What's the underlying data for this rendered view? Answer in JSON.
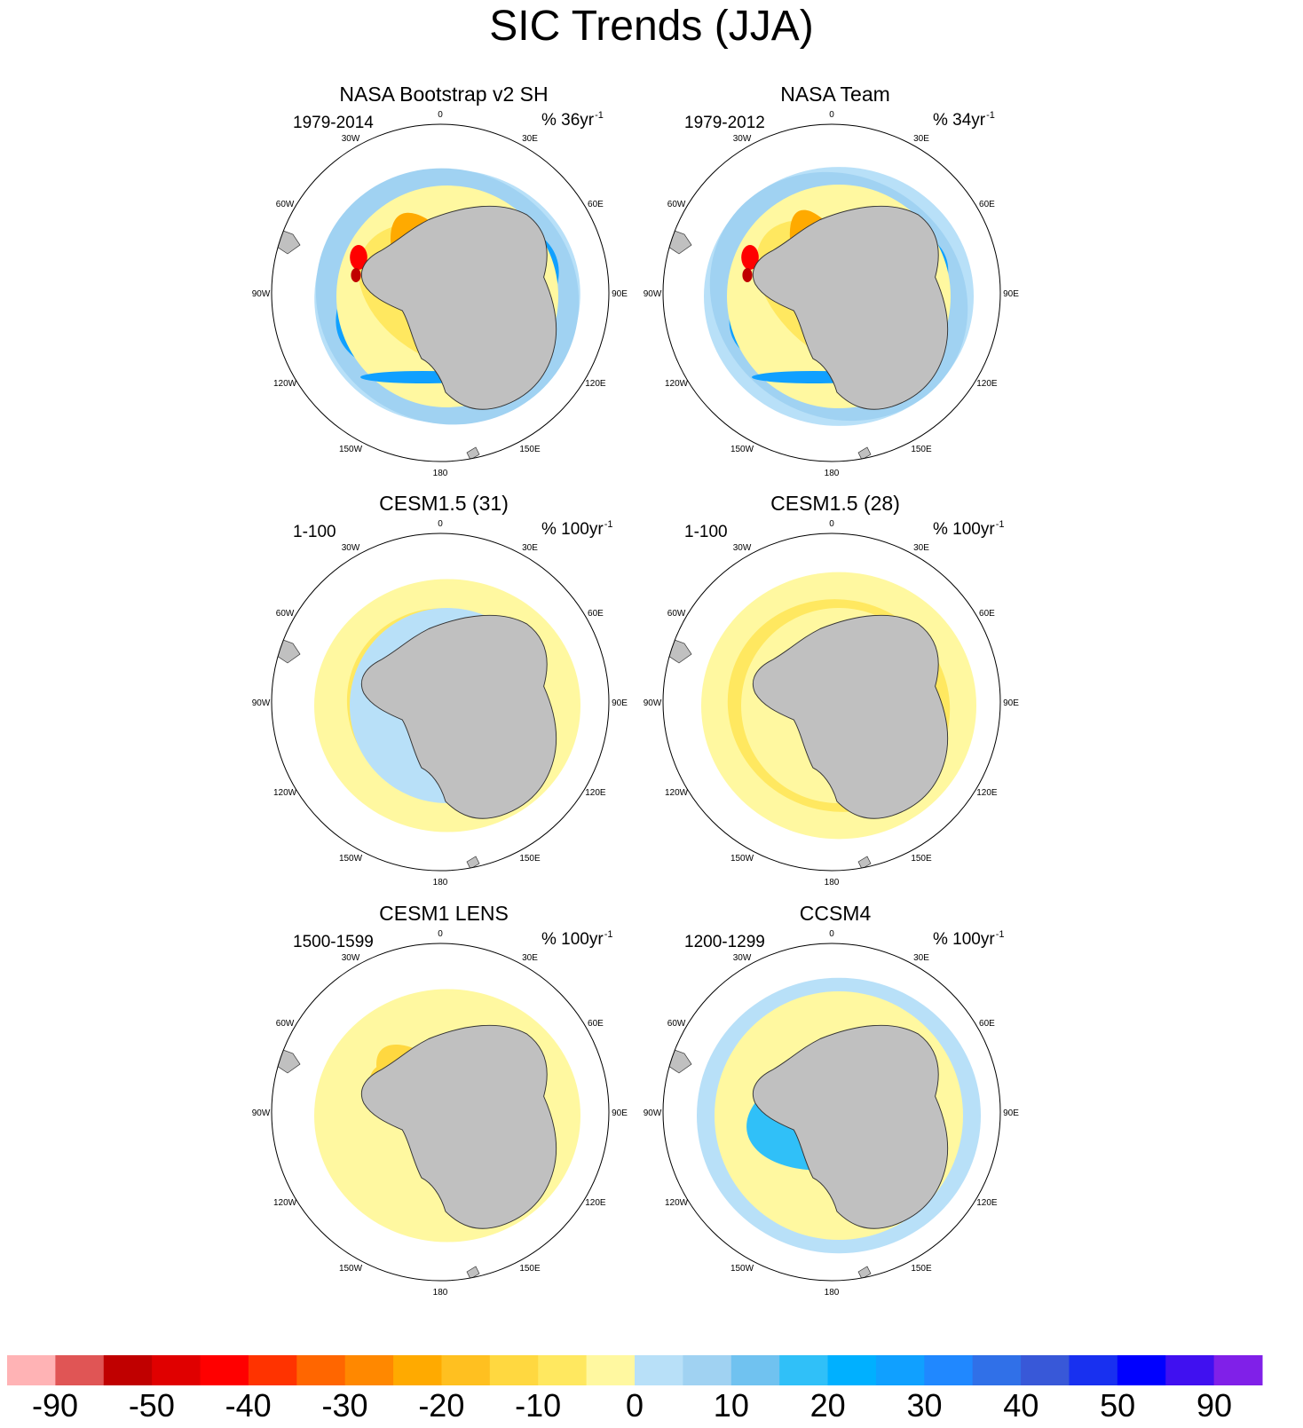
{
  "title": "SIC Trends (JJA)",
  "panels": [
    {
      "title": "NASA Bootstrap v2 SH",
      "period": "1979-2014",
      "units_prefix": "% 36yr",
      "units_sup": "-1",
      "pattern": "obs1"
    },
    {
      "title": "NASA Team",
      "period": "1979-2012",
      "units_prefix": "% 34yr",
      "units_sup": "-1",
      "pattern": "obs2"
    },
    {
      "title": "CESM1.5 (31)",
      "period": "1-100",
      "units_prefix": "% 100yr",
      "units_sup": "-1",
      "pattern": "warm"
    },
    {
      "title": "CESM1.5 (28)",
      "period": "1-100",
      "units_prefix": "% 100yr",
      "units_sup": "-1",
      "pattern": "warm2"
    },
    {
      "title": "CESM1 LENS",
      "period": "1500-1599",
      "units_prefix": "% 100yr",
      "units_sup": "-1",
      "pattern": "mixed"
    },
    {
      "title": "CCSM4",
      "period": "1200-1299",
      "units_prefix": "% 100yr",
      "units_sup": "-1",
      "pattern": "cool"
    }
  ],
  "lon_labels": [
    "0",
    "30E",
    "60E",
    "90E",
    "120E",
    "150E",
    "180",
    "150W",
    "120W",
    "90W",
    "60W",
    "30W"
  ],
  "colorbar": {
    "colors": [
      "#ffb3b5",
      "#e05555",
      "#c00000",
      "#e00000",
      "#ff0000",
      "#ff3300",
      "#ff6600",
      "#ff8800",
      "#ffaa00",
      "#ffc020",
      "#ffd840",
      "#ffe860",
      "#fff8a0",
      "#b8e0f8",
      "#a0d2f2",
      "#70c2f0",
      "#30c0f8",
      "#00b0ff",
      "#10a0ff",
      "#2088ff",
      "#3070e8",
      "#3858d8",
      "#1830f0",
      "#0000ff",
      "#4010f0",
      "#8020e8"
    ],
    "labels": [
      "-90",
      "-50",
      "-40",
      "-30",
      "-20",
      "-10",
      "0",
      "10",
      "20",
      "30",
      "40",
      "50",
      "90"
    ]
  },
  "colors": {
    "land": "#c0c0c0",
    "background": "#ffffff"
  }
}
